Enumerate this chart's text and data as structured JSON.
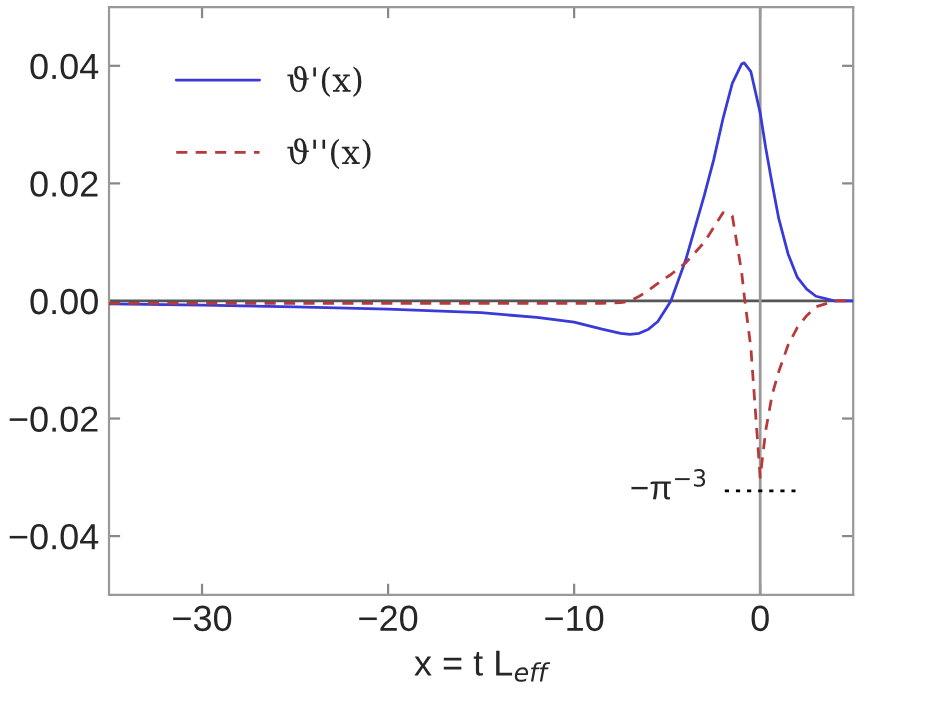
{
  "chart_data": {
    "type": "line",
    "xlabel": "x = t L$_{eff}$",
    "x": [
      -35,
      -30,
      -25,
      -20,
      -15,
      -12,
      -10,
      -8.5,
      -7.5,
      -7,
      -6.5,
      -6,
      -5.5,
      -4.8,
      -4,
      -3,
      -2.5,
      -2,
      -1.5,
      -1,
      -0.86,
      -0.5,
      0,
      0.3,
      0.64,
      1,
      1.5,
      2,
      2.5,
      3,
      4,
      5
    ],
    "series": [
      {
        "name": "ϑ'(x)",
        "color": "#3a3ad8",
        "line_style": "solid",
        "values": [
          -0.0005,
          -0.0007,
          -0.001,
          -0.0014,
          -0.002,
          -0.0028,
          -0.0036,
          -0.0048,
          -0.0055,
          -0.0057,
          -0.0055,
          -0.0048,
          -0.0035,
          0,
          0.007,
          0.018,
          0.024,
          0.031,
          0.037,
          0.0403,
          0.0405,
          0.039,
          0.032,
          0.026,
          0.02,
          0.014,
          0.008,
          0.004,
          0.002,
          0.0008,
          0,
          0
        ]
      },
      {
        "name": "ϑ''(x)",
        "color": "#b8393a",
        "line_style": "dashed",
        "values": [
          -0.0004,
          -0.0004,
          -0.0004,
          -0.0004,
          -0.0004,
          -0.0004,
          -0.0004,
          -0.0004,
          -0.0003,
          0,
          0.0008,
          0.0018,
          0.003,
          0.0045,
          0.0065,
          0.01,
          0.0125,
          0.015,
          0.0145,
          0.005,
          0.001,
          -0.008,
          -0.03,
          -0.022,
          -0.016,
          -0.012,
          -0.0075,
          -0.0045,
          -0.0025,
          -0.001,
          0,
          0
        ]
      },
      {
        "x": [
          -1.9,
          1.9
        ],
        "color": "#000000",
        "line_style": "dotted",
        "values": [
          -0.0323,
          -0.0323
        ]
      }
    ],
    "annotations": [
      {
        "text": "−π$^{−3}$",
        "x": -1.9,
        "y": -0.0323
      }
    ],
    "ref_lines": [
      {
        "axis": "y",
        "value": 0,
        "color": "#555555"
      },
      {
        "axis": "x",
        "value": 0,
        "color": "#999999"
      }
    ],
    "xlim": [
      -35,
      5
    ],
    "ylim": [
      -0.05,
      0.05
    ],
    "xticks": [
      {
        "value": -30,
        "label": "−30"
      },
      {
        "value": -20,
        "label": "−20"
      },
      {
        "value": -10,
        "label": "−10"
      },
      0
    ],
    "yticks": [
      {
        "value": -0.04,
        "label": "−0.04"
      },
      {
        "value": -0.02,
        "label": "−0.02"
      },
      {
        "value": 0,
        "label": "0.00"
      },
      {
        "value": 0.02,
        "label": "0.02"
      },
      {
        "value": 0.04,
        "label": "0.04"
      }
    ],
    "legend": "top left",
    "grid": false
  }
}
